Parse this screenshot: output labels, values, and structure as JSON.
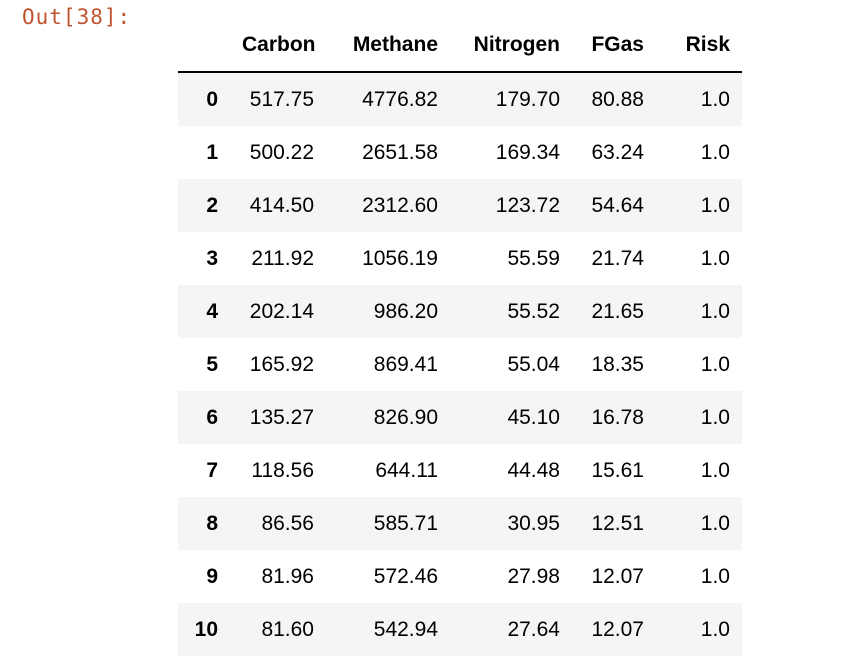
{
  "cell": {
    "out_prompt": "Out[38]:"
  },
  "table": {
    "index_header": "",
    "columns": [
      "Carbon",
      "Methane",
      "Nitrogen",
      "FGas",
      "Risk"
    ],
    "rows": [
      {
        "index": "0",
        "values": [
          "517.75",
          "4776.82",
          "179.70",
          "80.88",
          "1.0"
        ]
      },
      {
        "index": "1",
        "values": [
          "500.22",
          "2651.58",
          "169.34",
          "63.24",
          "1.0"
        ]
      },
      {
        "index": "2",
        "values": [
          "414.50",
          "2312.60",
          "123.72",
          "54.64",
          "1.0"
        ]
      },
      {
        "index": "3",
        "values": [
          "211.92",
          "1056.19",
          "55.59",
          "21.74",
          "1.0"
        ]
      },
      {
        "index": "4",
        "values": [
          "202.14",
          "986.20",
          "55.52",
          "21.65",
          "1.0"
        ]
      },
      {
        "index": "5",
        "values": [
          "165.92",
          "869.41",
          "55.04",
          "18.35",
          "1.0"
        ]
      },
      {
        "index": "6",
        "values": [
          "135.27",
          "826.90",
          "45.10",
          "16.78",
          "1.0"
        ]
      },
      {
        "index": "7",
        "values": [
          "118.56",
          "644.11",
          "44.48",
          "15.61",
          "1.0"
        ]
      },
      {
        "index": "8",
        "values": [
          "86.56",
          "585.71",
          "30.95",
          "12.51",
          "1.0"
        ]
      },
      {
        "index": "9",
        "values": [
          "81.96",
          "572.46",
          "27.98",
          "12.07",
          "1.0"
        ]
      },
      {
        "index": "10",
        "values": [
          "81.60",
          "542.94",
          "27.64",
          "12.07",
          "1.0"
        ]
      }
    ]
  },
  "colors": {
    "prompt": "#c0522f",
    "stripe": "#f5f5f5",
    "text": "#000000"
  }
}
